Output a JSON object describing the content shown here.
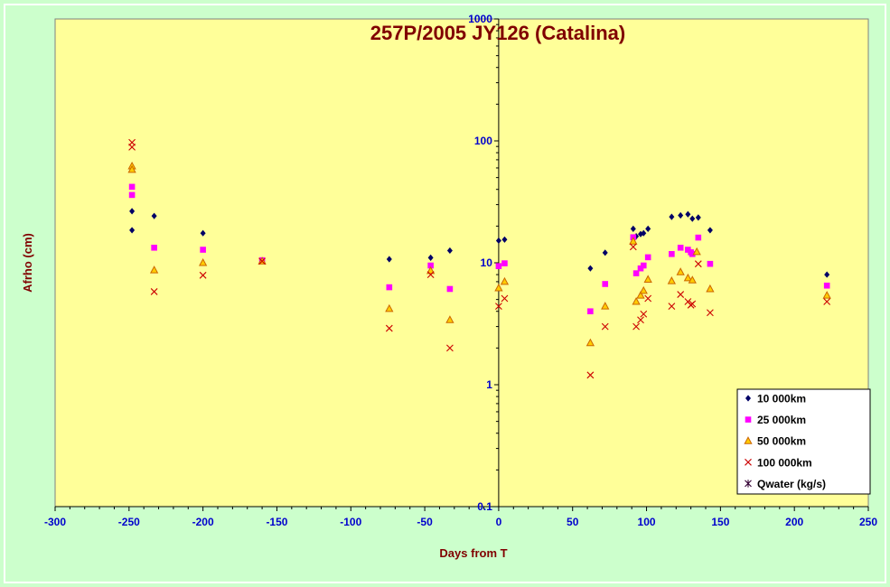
{
  "chart_data": {
    "type": "scatter",
    "title": "257P/2005 JY126 (Catalina)",
    "xlabel": "Days from  T",
    "ylabel": "Afrho (cm)",
    "xlim": [
      -300,
      250
    ],
    "ylim": [
      0.1,
      1000
    ],
    "yscale": "log",
    "xticks": [
      -300,
      -250,
      -200,
      -150,
      -100,
      -50,
      0,
      50,
      100,
      150,
      200,
      250
    ],
    "yticks": [
      {
        "value": 0.1,
        "label": "0.1"
      },
      {
        "value": 1,
        "label": "1"
      },
      {
        "value": 10,
        "label": "10"
      },
      {
        "value": 100,
        "label": "100"
      },
      {
        "value": 1000,
        "label": "1000"
      }
    ],
    "legend_position": "bottom-right",
    "series": [
      {
        "name": "10 000km",
        "marker": "diamond",
        "color": "#000066",
        "points": [
          [
            -248,
            26.5
          ],
          [
            -248,
            18.5
          ],
          [
            -233,
            24.2
          ],
          [
            -200,
            17.5
          ],
          [
            -74,
            10.7
          ],
          [
            -46,
            11
          ],
          [
            -33,
            12.6
          ],
          [
            0,
            15.2
          ],
          [
            4,
            15.5
          ],
          [
            62,
            9
          ],
          [
            72,
            12.1
          ],
          [
            91,
            19
          ],
          [
            93,
            16.5
          ],
          [
            96,
            17.2
          ],
          [
            98,
            17.5
          ],
          [
            101,
            19
          ],
          [
            117,
            23.8
          ],
          [
            123,
            24.5
          ],
          [
            128,
            25
          ],
          [
            131,
            23
          ],
          [
            135,
            23.5
          ],
          [
            143,
            18.5
          ],
          [
            222,
            8
          ]
        ]
      },
      {
        "name": "25 000km",
        "marker": "square",
        "color": "#ff00ff",
        "points": [
          [
            -248,
            42
          ],
          [
            -248,
            36
          ],
          [
            -233,
            13.3
          ],
          [
            -200,
            12.8
          ],
          [
            -160,
            10.5
          ],
          [
            -74,
            6.3
          ],
          [
            -46,
            9.5
          ],
          [
            -33,
            6.1
          ],
          [
            0,
            9.4
          ],
          [
            4,
            9.9
          ],
          [
            62,
            4
          ],
          [
            72,
            6.7
          ],
          [
            91,
            16.2
          ],
          [
            93,
            8.2
          ],
          [
            96,
            9
          ],
          [
            98,
            9.5
          ],
          [
            101,
            11.1
          ],
          [
            117,
            11.8
          ],
          [
            123,
            13.3
          ],
          [
            128,
            12.8
          ],
          [
            130,
            12.2
          ],
          [
            131,
            11.8
          ],
          [
            135,
            16.1
          ],
          [
            143,
            9.8
          ],
          [
            222,
            6.5
          ]
        ]
      },
      {
        "name": "50 000km",
        "marker": "triangle",
        "color": "#cc6600",
        "fill": "#ffcc00",
        "points": [
          [
            -248,
            62
          ],
          [
            -248,
            58
          ],
          [
            -233,
            8.7
          ],
          [
            -200,
            10
          ],
          [
            -160,
            10.3
          ],
          [
            -74,
            4.2
          ],
          [
            -46,
            8.6
          ],
          [
            -33,
            3.4
          ],
          [
            0,
            6.2
          ],
          [
            4,
            7
          ],
          [
            62,
            2.2
          ],
          [
            72,
            4.4
          ],
          [
            91,
            15
          ],
          [
            93,
            4.8
          ],
          [
            96,
            5.4
          ],
          [
            98,
            5.9
          ],
          [
            101,
            7.3
          ],
          [
            117,
            7.1
          ],
          [
            123,
            8.4
          ],
          [
            128,
            7.5
          ],
          [
            131,
            7.2
          ],
          [
            134,
            12.3
          ],
          [
            143,
            6.1
          ],
          [
            222,
            5.4
          ]
        ]
      },
      {
        "name": "100 000km",
        "marker": "x",
        "color": "#cc0000",
        "points": [
          [
            -248,
            97
          ],
          [
            -248,
            89
          ],
          [
            -233,
            5.8
          ],
          [
            -200,
            7.9
          ],
          [
            -160,
            10.3
          ],
          [
            -74,
            2.9
          ],
          [
            -46,
            8
          ],
          [
            -33,
            2
          ],
          [
            0,
            4.4
          ],
          [
            4,
            5.1
          ],
          [
            62,
            1.2
          ],
          [
            72,
            3
          ],
          [
            91,
            13.5
          ],
          [
            93,
            3
          ],
          [
            96,
            3.4
          ],
          [
            98,
            3.8
          ],
          [
            101,
            5.1
          ],
          [
            117,
            4.4
          ],
          [
            123,
            5.5
          ],
          [
            128,
            4.8
          ],
          [
            130,
            4.5
          ],
          [
            131,
            4.6
          ],
          [
            135,
            9.8
          ],
          [
            143,
            3.9
          ],
          [
            222,
            4.8
          ]
        ]
      },
      {
        "name": "Qwater (kg/s)",
        "marker": "asterisk",
        "color": "#330033",
        "points": []
      }
    ]
  }
}
